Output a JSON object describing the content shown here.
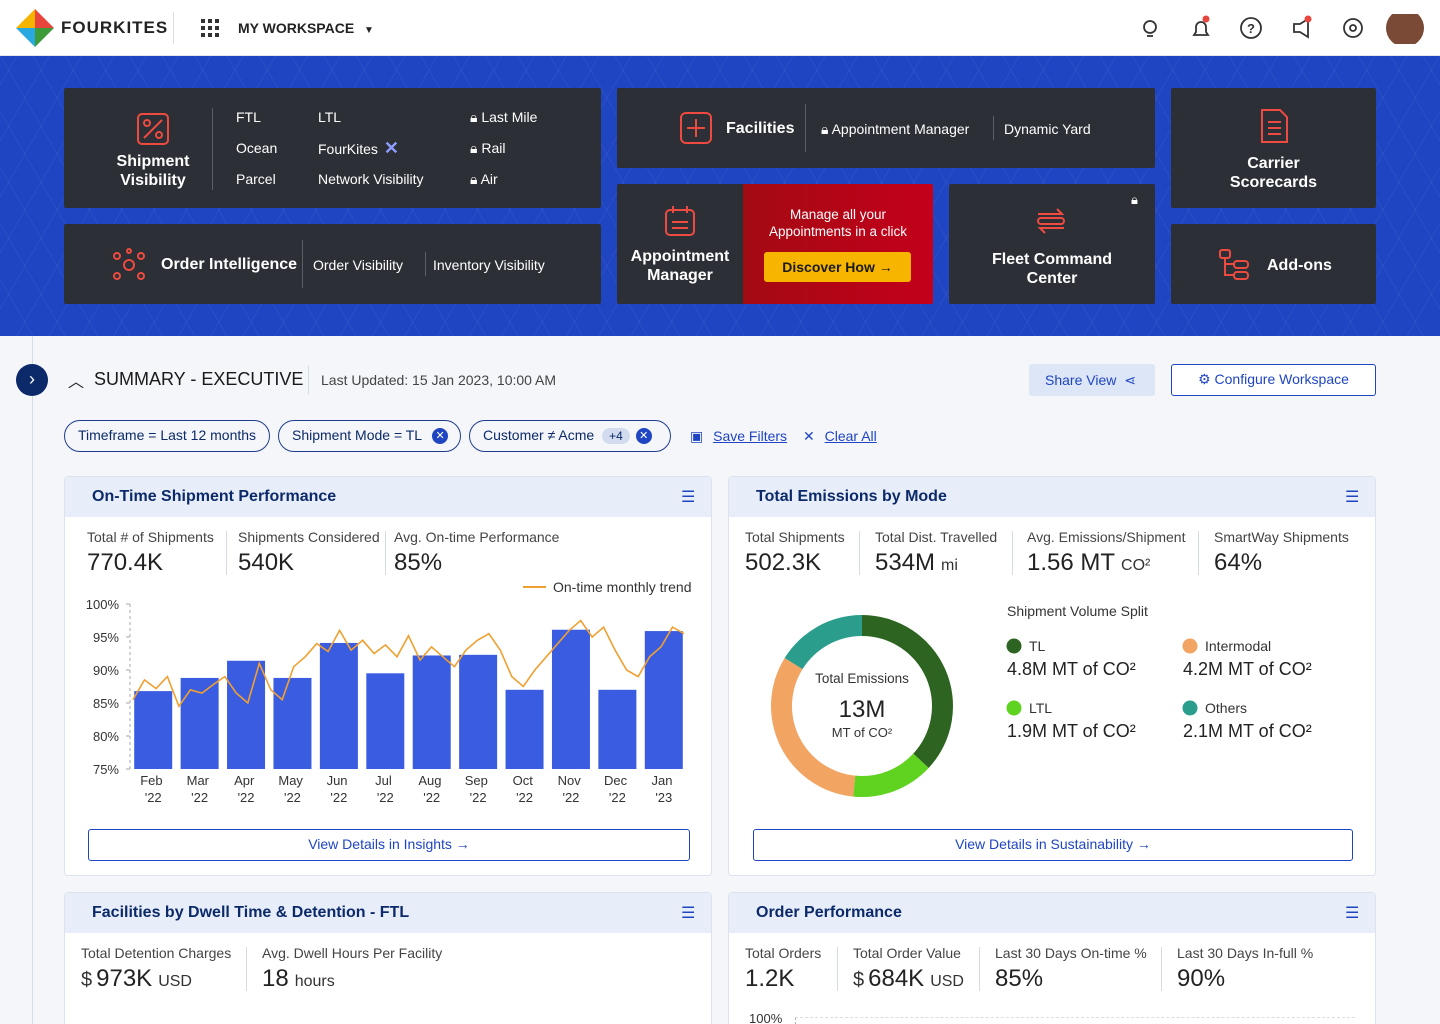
{
  "header": {
    "brand": "FOURKITES",
    "workspace": "MY WORKSPACE"
  },
  "tiles": {
    "shipment_visibility": {
      "title": "Shipment Visibility",
      "links": [
        "FTL",
        "Ocean",
        "Parcel",
        "LTL",
        "FourKites",
        "Network Visibility",
        "Last Mile",
        "Rail",
        "Air"
      ]
    },
    "order_intelligence": {
      "title": "Order Intelligence",
      "links": [
        "Order Visibility",
        "Inventory Visibility"
      ]
    },
    "facilities": {
      "title": "Facilities",
      "links": [
        "Appointment Manager",
        "Dynamic Yard"
      ]
    },
    "appointment_manager": {
      "title": "Appointment Manager",
      "promo": "Manage all your Appointments in a click",
      "cta": "Discover How"
    },
    "fleet_command": {
      "title": "Fleet Command Center"
    },
    "carrier_scorecards": {
      "title": "Carrier Scorecards"
    },
    "addons": {
      "title": "Add-ons"
    }
  },
  "summary": {
    "title": "SUMMARY - EXECUTIVE",
    "updated": "Last Updated: 15 Jan 2023, 10:00 AM",
    "share": "Share View",
    "configure": "Configure Workspace"
  },
  "filters": {
    "chips": [
      {
        "label": "Timeframe = Last 12 months"
      },
      {
        "label": "Shipment Mode = TL"
      },
      {
        "label": "Customer ≠ Acme",
        "extra": "+4"
      }
    ],
    "save": "Save Filters",
    "clear": "Clear All"
  },
  "cards": [
    {
      "title": "On-Time Shipment Performance",
      "stats": [
        {
          "label": "Total # of Shipments",
          "value": "770.4K"
        },
        {
          "label": "Shipments Considered",
          "value": "540K"
        },
        {
          "label": "Avg. On-time Performance",
          "value": "85%"
        }
      ],
      "link": "View Details in Insights"
    },
    {
      "title": "Total Emissions by Mode",
      "stats": [
        {
          "label": "Total Shipments",
          "value": "502.3K"
        },
        {
          "label": "Total Dist. Travelled",
          "value": "534M",
          "unit": "mi"
        },
        {
          "label": "Avg. Emissions/Shipment",
          "value": "1.56 MT",
          "unit": "CO²"
        },
        {
          "label": "SmartWay Shipments",
          "value": "64%"
        }
      ],
      "link": "View Details in Sustainability"
    },
    {
      "title": "Facilities by Dwell Time & Detention - FTL",
      "stats": [
        {
          "label": "Total Detention Charges",
          "prefix": "$",
          "value": "973K",
          "unit": "USD"
        },
        {
          "label": "Avg. Dwell Hours Per Facility",
          "value": "18",
          "unit": "hours"
        }
      ]
    },
    {
      "title": "Order Performance",
      "stats": [
        {
          "label": "Total Orders",
          "value": "1.2K"
        },
        {
          "label": "Total Order Value",
          "prefix": "$",
          "value": "684K",
          "unit": "USD"
        },
        {
          "label": "Last 30 Days On-time %",
          "value": "85%"
        },
        {
          "label": "Last 30 Days In-full %",
          "value": "90%"
        }
      ],
      "axis_label": "100%"
    }
  ],
  "chart_data": [
    {
      "type": "bar",
      "categories": [
        "Feb '22",
        "Mar '22",
        "Apr '22",
        "May '22",
        "Jun '22",
        "Jul '22",
        "Aug '22",
        "Sep '22",
        "Oct '22",
        "Nov '22",
        "Dec '22",
        "Jan '23"
      ],
      "values": [
        86.8,
        88.8,
        91.4,
        88.8,
        94.1,
        89.5,
        92.2,
        92.3,
        87,
        96.1,
        87,
        95.9
      ],
      "color": "#3a5ce0",
      "trend": {
        "name": "On-time monthly trend",
        "color": "#f0a030",
        "values": [
          85.5,
          88.5,
          87.2,
          89,
          84.5,
          87,
          86.5,
          87.8,
          89,
          86.5,
          85,
          91,
          87,
          85.5,
          90.5,
          92,
          94,
          92.8,
          96,
          93,
          94.5,
          92.5,
          93.8,
          92,
          95.2,
          91.5,
          93.5,
          92,
          90.5,
          93,
          94.5,
          95.5,
          93,
          89,
          87.5,
          90,
          92,
          94,
          96,
          97.5,
          95,
          96.5,
          93,
          90,
          89,
          92,
          93.5,
          96.5,
          95.5
        ]
      },
      "ylim": [
        75,
        100
      ],
      "yticks": [
        {
          "value": 75,
          "label": "75%"
        },
        {
          "value": 80,
          "label": "80%"
        },
        {
          "value": 85,
          "label": "85%"
        },
        {
          "value": 90,
          "label": "90%"
        },
        {
          "value": 95,
          "label": "95%"
        },
        {
          "value": 100,
          "label": "100%"
        }
      ],
      "grid": false
    },
    {
      "type": "donut",
      "center_title": "Total Emissions",
      "center_value": "13M",
      "center_unit": "MT of CO²",
      "legend_title": "Shipment Volume Split",
      "series": [
        {
          "name": "TL",
          "color": "#2e6421",
          "values": [
            4800000
          ],
          "value_labels": [
            "4.8M MT of CO²"
          ]
        },
        {
          "name": "LTL",
          "color": "#5fd31f",
          "values": [
            1900000
          ],
          "value_labels": [
            "1.9M MT of CO²"
          ]
        },
        {
          "name": "Intermodal",
          "color": "#f2a463",
          "values": [
            4200000
          ],
          "value_labels": [
            "4.2M MT of CO²"
          ]
        },
        {
          "name": "Others",
          "color": "#2a9d8c",
          "values": [
            2100000
          ],
          "value_labels": [
            "2.1M MT of CO²"
          ]
        }
      ]
    }
  ]
}
